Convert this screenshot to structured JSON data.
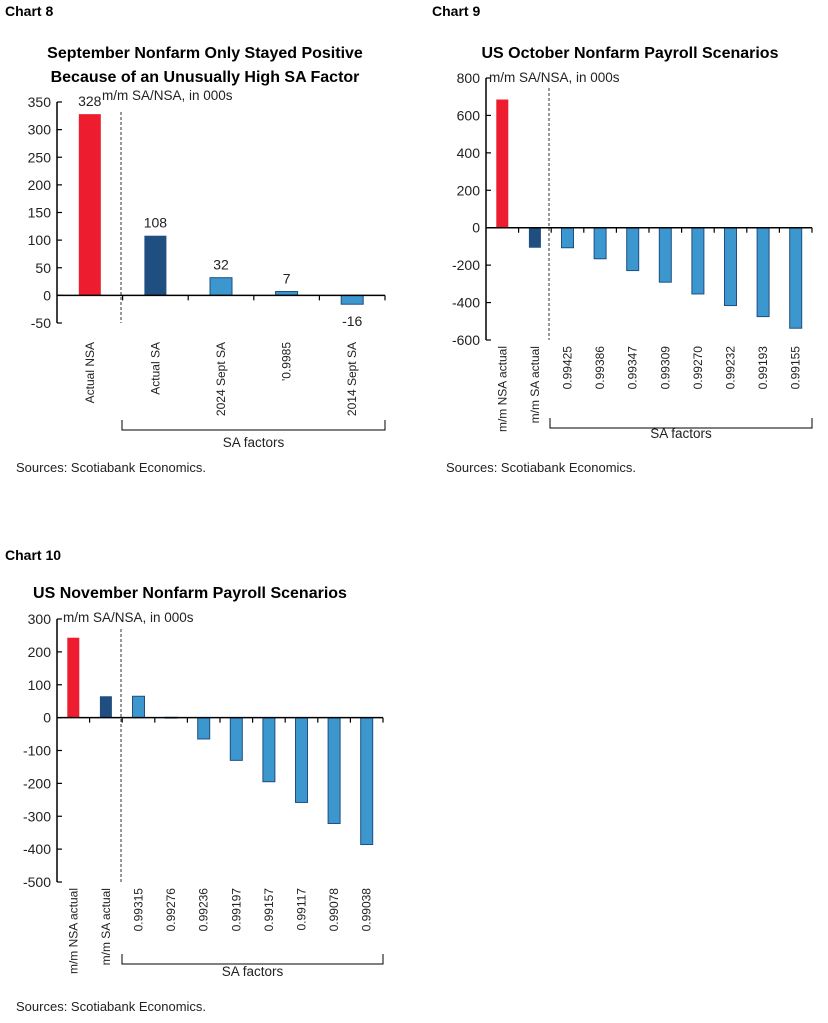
{
  "chart_data": [
    {
      "type": "bar",
      "chart_label": "Chart 8",
      "title": [
        "September Nonfarm Only Stayed Positive",
        "Because of an Unusually High SA Factor"
      ],
      "subtitle": "m/m SA/NSA, in 000s",
      "ylim": [
        -50,
        350
      ],
      "yticks": [
        "350",
        "300",
        "250",
        "200",
        "150",
        "100",
        "50",
        "0",
        "-50"
      ],
      "categories": [
        "Actual NSA",
        "Actual SA",
        "2024 Sept SA",
        "'0.9985",
        "2014 Sept SA"
      ],
      "values": [
        328,
        108,
        32,
        7,
        -16
      ],
      "data_labels": [
        "328",
        "108",
        "32",
        "7",
        "-16"
      ],
      "bar_colors": [
        "#ED1C2E",
        "#1F4E80",
        "#3C97CF",
        "#3C97CF",
        "#3C97CF"
      ],
      "group_label": "SA factors",
      "source": "Sources: Scotiabank Economics."
    },
    {
      "type": "bar",
      "chart_label": "Chart 9",
      "title": [
        "US October Nonfarm Payroll Scenarios"
      ],
      "subtitle": "m/m SA/NSA, in 000s",
      "ylim": [
        -600,
        800
      ],
      "yticks": [
        "800",
        "600",
        "400",
        "200",
        "0",
        "-200",
        "-400",
        "-600"
      ],
      "categories": [
        "m/m NSA actual",
        "m/m SA actual",
        "0.99425",
        "0.99386",
        "0.99347",
        "0.99309",
        "0.99270",
        "0.99232",
        "0.99193",
        "0.99155"
      ],
      "values": [
        685,
        -107,
        -107,
        -166,
        -229,
        -291,
        -354,
        -416,
        -475,
        -537
      ],
      "bar_colors": [
        "#ED1C2E",
        "#1F4E80",
        "#3C97CF",
        "#3C97CF",
        "#3C97CF",
        "#3C97CF",
        "#3C97CF",
        "#3C97CF",
        "#3C97CF",
        "#3C97CF"
      ],
      "group_label": "SA factors",
      "source": "Sources: Scotiabank Economics."
    },
    {
      "type": "bar",
      "chart_label": "Chart 10",
      "title": [
        "US November Nonfarm Payroll Scenarios"
      ],
      "subtitle": "m/m SA/NSA, in 000s",
      "ylim": [
        -500,
        300
      ],
      "yticks": [
        "300",
        "200",
        "100",
        "0",
        "-100",
        "-200",
        "-300",
        "-400",
        "-500"
      ],
      "categories": [
        "m/m NSA actual",
        "m/m SA actual",
        "0.99315",
        "0.99276",
        "0.99236",
        "0.99197",
        "0.99157",
        "0.99117",
        "0.99078",
        "0.99038"
      ],
      "values": [
        243,
        65,
        65,
        1,
        -65,
        -130,
        -195,
        -258,
        -322,
        -386
      ],
      "bar_colors": [
        "#ED1C2E",
        "#1F4E80",
        "#3C97CF",
        "#3C97CF",
        "#3C97CF",
        "#3C97CF",
        "#3C97CF",
        "#3C97CF",
        "#3C97CF",
        "#3C97CF"
      ],
      "group_label": "SA factors",
      "source": "Sources: Scotiabank Economics."
    }
  ]
}
